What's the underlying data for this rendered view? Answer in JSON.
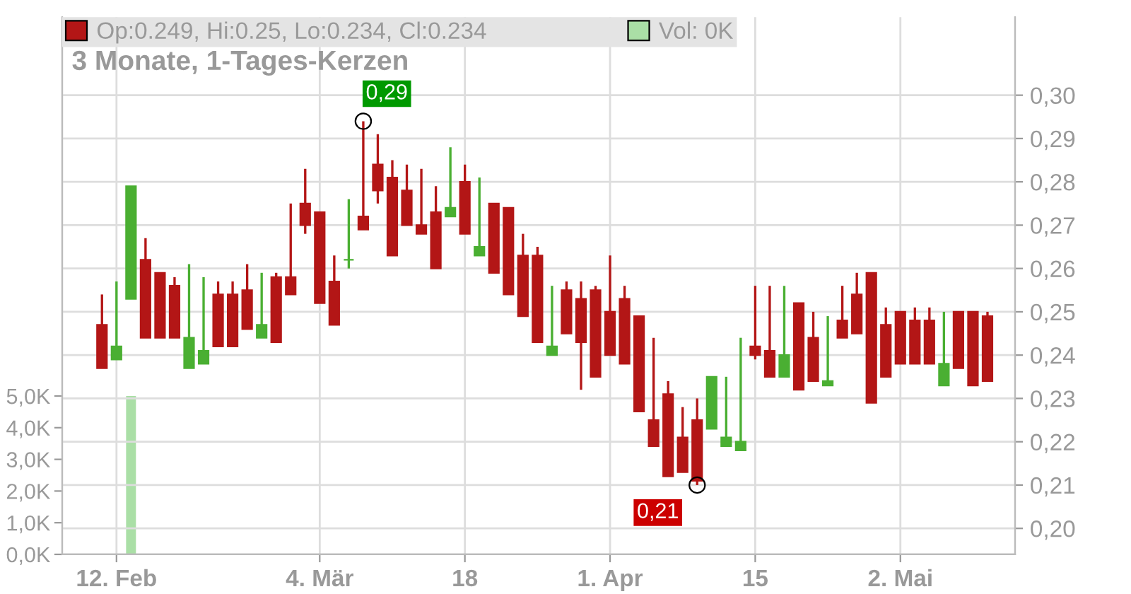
{
  "chart_data": {
    "type": "candlestick",
    "title": "3 Monate, 1-Tages-Kerzen",
    "categories": [
      null,
      "12. Feb",
      null,
      null,
      null,
      null,
      null,
      null,
      null,
      null,
      null,
      null,
      null,
      null,
      null,
      "4. Mär",
      null,
      null,
      null,
      null,
      null,
      null,
      null,
      null,
      null,
      "18",
      null,
      null,
      null,
      null,
      null,
      null,
      null,
      null,
      null,
      "1. Apr",
      null,
      null,
      null,
      null,
      null,
      null,
      null,
      null,
      null,
      "15",
      null,
      null,
      null,
      null,
      null,
      null,
      null,
      null,
      null,
      "2. Mai",
      null,
      null,
      null,
      null,
      null,
      null
    ],
    "series": [
      {
        "name": "Op:0.249, Hi:0.25, Lo:0.234, Cl:0.234",
        "color": "#b31616",
        "ohlc": [
          [
            0.247,
            0.254,
            0.237,
            0.237
          ],
          [
            0.239,
            0.257,
            0.239,
            0.242
          ],
          [
            0.253,
            0.279,
            0.253,
            0.279
          ],
          [
            0.262,
            0.267,
            0.244,
            0.244
          ],
          [
            0.259,
            0.259,
            0.244,
            0.244
          ],
          [
            0.256,
            0.258,
            0.244,
            0.244
          ],
          [
            0.237,
            0.261,
            0.237,
            0.244
          ],
          [
            0.238,
            0.258,
            0.238,
            0.241
          ],
          [
            0.254,
            0.257,
            0.242,
            0.242
          ],
          [
            0.254,
            0.257,
            0.242,
            0.242
          ],
          [
            0.255,
            0.261,
            0.246,
            0.246
          ],
          [
            0.244,
            0.259,
            0.244,
            0.247
          ],
          [
            0.258,
            0.259,
            0.243,
            0.243
          ],
          [
            0.258,
            0.275,
            0.254,
            0.254
          ],
          [
            0.275,
            0.283,
            0.268,
            0.27
          ],
          [
            0.273,
            0.273,
            0.252,
            0.252
          ],
          [
            0.257,
            0.263,
            0.247,
            0.247
          ],
          [
            0.262,
            0.276,
            0.26,
            0.262
          ],
          [
            0.272,
            0.294,
            0.269,
            0.269
          ],
          [
            0.284,
            0.291,
            0.275,
            0.278
          ],
          [
            0.281,
            0.285,
            0.263,
            0.263
          ],
          [
            0.278,
            0.284,
            0.27,
            0.27
          ],
          [
            0.27,
            0.283,
            0.268,
            0.268
          ],
          [
            0.273,
            0.279,
            0.26,
            0.26
          ],
          [
            0.272,
            0.288,
            0.272,
            0.274
          ],
          [
            0.28,
            0.284,
            0.268,
            0.268
          ],
          [
            0.263,
            0.281,
            0.263,
            0.265
          ],
          [
            0.275,
            0.275,
            0.259,
            0.259
          ],
          [
            0.274,
            0.274,
            0.254,
            0.254
          ],
          [
            0.263,
            0.268,
            0.249,
            0.249
          ],
          [
            0.263,
            0.265,
            0.243,
            0.243
          ],
          [
            0.24,
            0.256,
            0.24,
            0.242
          ],
          [
            0.255,
            0.257,
            0.245,
            0.245
          ],
          [
            0.253,
            0.257,
            0.232,
            0.243
          ],
          [
            0.255,
            0.256,
            0.235,
            0.235
          ],
          [
            0.25,
            0.263,
            0.24,
            0.24
          ],
          [
            0.253,
            0.256,
            0.238,
            0.238
          ],
          [
            0.249,
            0.249,
            0.227,
            0.227
          ],
          [
            0.225,
            0.244,
            0.219,
            0.219
          ],
          [
            0.231,
            0.234,
            0.212,
            0.212
          ],
          [
            0.221,
            0.228,
            0.213,
            0.213
          ],
          [
            0.225,
            0.23,
            0.21,
            0.211
          ],
          [
            0.223,
            0.235,
            0.223,
            0.235
          ],
          [
            0.219,
            0.235,
            0.219,
            0.221
          ],
          [
            0.218,
            0.244,
            0.218,
            0.22
          ],
          [
            0.242,
            0.256,
            0.239,
            0.24
          ],
          [
            0.241,
            0.256,
            0.235,
            0.235
          ],
          [
            0.235,
            0.256,
            0.235,
            0.24
          ],
          [
            0.252,
            0.252,
            0.232,
            0.232
          ],
          [
            0.244,
            0.25,
            0.234,
            0.234
          ],
          [
            0.233,
            0.249,
            0.233,
            0.234
          ],
          [
            0.248,
            0.256,
            0.244,
            0.244
          ],
          [
            0.254,
            0.259,
            0.245,
            0.245
          ],
          [
            0.259,
            0.259,
            0.229,
            0.229
          ],
          [
            0.247,
            0.251,
            0.235,
            0.235
          ],
          [
            0.25,
            0.25,
            0.238,
            0.238
          ],
          [
            0.248,
            0.251,
            0.238,
            0.238
          ],
          [
            0.248,
            0.251,
            0.238,
            0.238
          ],
          [
            0.233,
            0.25,
            0.233,
            0.238
          ],
          [
            0.25,
            0.25,
            0.237,
            0.237
          ],
          [
            0.25,
            0.25,
            0.233,
            0.233
          ],
          [
            0.249,
            0.25,
            0.234,
            0.234
          ]
        ],
        "colors": [
          "#b31616",
          "#4aaf32",
          "#4aaf32",
          "#b31616",
          "#b31616",
          "#b31616",
          "#4aaf32",
          "#4aaf32",
          "#b31616",
          "#b31616",
          "#b31616",
          "#4aaf32",
          "#b31616",
          "#b31616",
          "#b31616",
          "#b31616",
          "#b31616",
          "#4aaf32",
          "#b31616",
          "#b31616",
          "#b31616",
          "#b31616",
          "#b31616",
          "#b31616",
          "#4aaf32",
          "#b31616",
          "#4aaf32",
          "#b31616",
          "#b31616",
          "#b31616",
          "#b31616",
          "#4aaf32",
          "#b31616",
          "#b31616",
          "#b31616",
          "#b31616",
          "#b31616",
          "#b31616",
          "#b31616",
          "#b31616",
          "#b31616",
          "#b31616",
          "#4aaf32",
          "#4aaf32",
          "#4aaf32",
          "#b31616",
          "#b31616",
          "#4aaf32",
          "#b31616",
          "#b31616",
          "#4aaf32",
          "#b31616",
          "#b31616",
          "#b31616",
          "#b31616",
          "#b31616",
          "#b31616",
          "#b31616",
          "#4aaf32",
          "#b31616",
          "#b31616",
          "#b31616"
        ]
      },
      {
        "name": "Vol: 0K",
        "type": "bar",
        "axis": "y2",
        "color": "#aadfa6",
        "values": [
          0,
          0,
          5.0,
          0,
          0,
          0,
          0,
          0,
          0,
          0,
          0,
          0,
          0,
          0,
          0,
          0,
          0,
          0,
          0,
          0,
          0,
          0,
          0,
          0,
          0,
          0,
          0,
          0,
          0,
          0,
          0,
          0,
          0,
          0,
          0,
          0,
          0,
          0,
          0,
          0,
          0,
          0,
          0,
          0,
          0,
          0,
          0,
          0,
          0,
          0,
          0,
          0,
          0,
          0,
          0,
          0,
          0,
          0,
          0,
          0,
          0,
          0
        ]
      }
    ],
    "ylim": [
      0.194,
      0.318
    ],
    "yticks": [
      {
        "value": 0.2,
        "label": "0,20"
      },
      {
        "value": 0.21,
        "label": "0,21"
      },
      {
        "value": 0.22,
        "label": "0,22"
      },
      {
        "value": 0.23,
        "label": "0,23"
      },
      {
        "value": 0.24,
        "label": "0,24"
      },
      {
        "value": 0.25,
        "label": "0,25"
      },
      {
        "value": 0.26,
        "label": "0,26"
      },
      {
        "value": 0.27,
        "label": "0,27"
      },
      {
        "value": 0.28,
        "label": "0,28"
      },
      {
        "value": 0.29,
        "label": "0,29"
      },
      {
        "value": 0.3,
        "label": "0,30"
      }
    ],
    "y2lim": [
      0,
      16.96
    ],
    "y2ticks": [
      {
        "value": 0,
        "label": "0,0K"
      },
      {
        "value": 1,
        "label": "1,0K"
      },
      {
        "value": 2,
        "label": "2,0K"
      },
      {
        "value": 3,
        "label": "3,0K"
      },
      {
        "value": 4,
        "label": "4,0K"
      },
      {
        "value": 5,
        "label": "5,0K"
      }
    ],
    "annotations": [
      "0,29",
      "0,21"
    ],
    "grid": true,
    "legend": "top left"
  }
}
